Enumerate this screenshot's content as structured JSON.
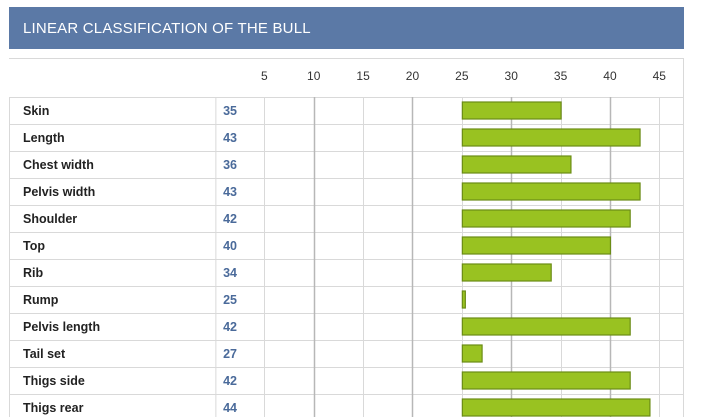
{
  "header": {
    "title": "LINEAR CLASSIFICATION OF THE BULL"
  },
  "colors": {
    "header_bg": "#5b79a6",
    "bar_fill": "#99c221",
    "bar_stroke": "#6b8c16",
    "value_text": "#4a6a9a",
    "label_text": "#222222",
    "grid": "#d9d9d9",
    "major_grid": "#b7b7b7"
  },
  "chart_data": {
    "type": "bar",
    "orientation": "horizontal",
    "categories": [
      "Skin",
      "Length",
      "Chest width",
      "Pelvis width",
      "Shoulder",
      "Top",
      "Rib",
      "Rump",
      "Pelvis length",
      "Tail set",
      "Thigs side",
      "Thigs rear"
    ],
    "values": [
      35,
      43,
      36,
      43,
      42,
      40,
      34,
      25,
      42,
      27,
      42,
      44
    ],
    "baseline": 25,
    "xlim": [
      0,
      47.5
    ],
    "xticks": [
      5,
      10,
      15,
      20,
      25,
      30,
      35,
      40,
      45
    ],
    "grid": true
  }
}
